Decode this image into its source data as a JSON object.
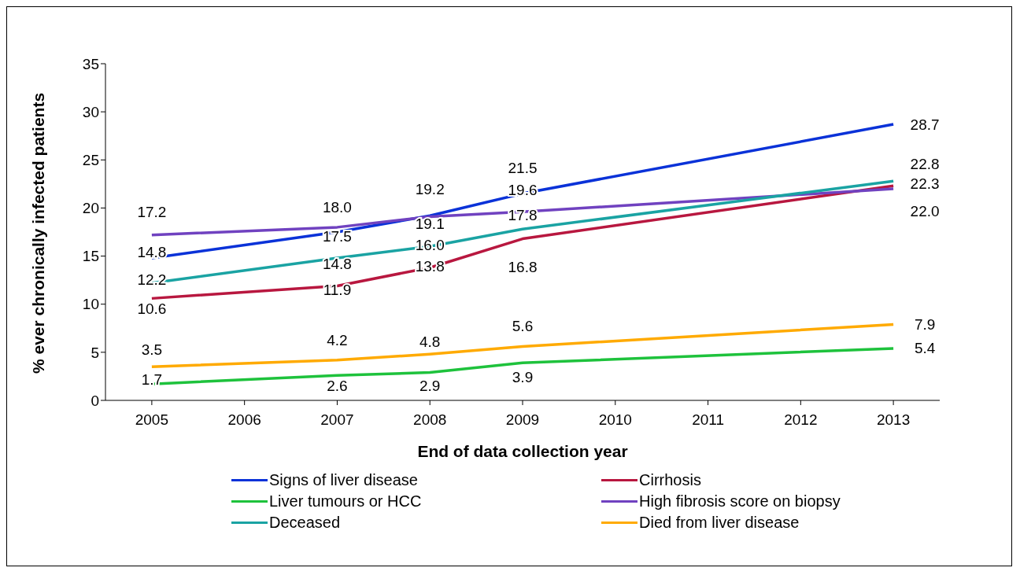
{
  "chart_data": {
    "type": "line",
    "xlabel": "End of data collection year",
    "ylabel": "% ever chronically infected patients",
    "x": [
      2005,
      2007,
      2008,
      2009,
      2013
    ],
    "xlim": [
      2004.5,
      2013.5
    ],
    "xticks": [
      2005,
      2006,
      2007,
      2008,
      2009,
      2010,
      2011,
      2012,
      2013
    ],
    "ylim": [
      0,
      35
    ],
    "yticks": [
      0,
      5,
      10,
      15,
      20,
      25,
      30,
      35
    ],
    "grid": false,
    "legend": "bottom",
    "marker": "none",
    "line_style": "solid",
    "series": [
      {
        "name": "Signs of liver disease",
        "color": "#0a32d8",
        "values": [
          14.8,
          17.5,
          19.2,
          21.5,
          28.7
        ],
        "value_labels": [
          "14.8",
          "17.5",
          "19.2",
          "21.5",
          "28.7"
        ]
      },
      {
        "name": "Cirrhosis",
        "color": "#b8173f",
        "values": [
          10.6,
          11.9,
          13.8,
          16.8,
          22.3
        ],
        "value_labels": [
          "10.6",
          "11.9",
          "13.8",
          "16.8",
          "22.3"
        ]
      },
      {
        "name": "Liver tumours or HCC",
        "color": "#1ec23c",
        "values": [
          1.7,
          2.6,
          2.9,
          3.9,
          5.4
        ],
        "value_labels": [
          "1.7",
          "2.6",
          "2.9",
          "3.9",
          "5.4"
        ]
      },
      {
        "name": "High fibrosis score on biopsy",
        "color": "#7042c0",
        "values": [
          17.2,
          18.0,
          19.1,
          19.6,
          22.0
        ],
        "value_labels": [
          "17.2",
          "18.0",
          "19.1",
          "19.6",
          "22.0"
        ]
      },
      {
        "name": "Deceased",
        "color": "#1aa3a3",
        "values": [
          12.2,
          14.8,
          16.0,
          17.8,
          22.8
        ],
        "value_labels": [
          "12.2",
          "14.8",
          "16.0",
          "17.8",
          "22.8"
        ]
      },
      {
        "name": "Died from liver disease",
        "color": "#ffaa00",
        "values": [
          3.5,
          4.2,
          4.8,
          5.6,
          7.9
        ],
        "value_labels": [
          "3.5",
          "4.2",
          "4.8",
          "5.6",
          "7.9"
        ]
      }
    ]
  }
}
